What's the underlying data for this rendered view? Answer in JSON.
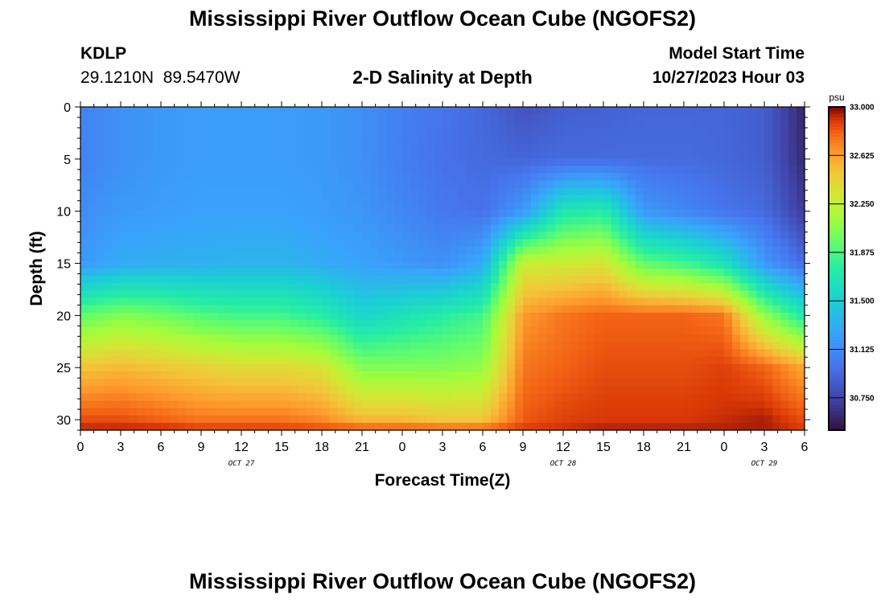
{
  "page": {
    "title": "Mississippi River Outflow Ocean Cube (NGOFS2)",
    "footer_title": "Mississippi River Outflow Ocean Cube (NGOFS2)"
  },
  "station": {
    "id": "KDLP",
    "coords": "29.1210N  89.5470W"
  },
  "model": {
    "label": "Model Start Time",
    "time": "10/27/2023 Hour 03"
  },
  "chart_data": {
    "type": "heatmap",
    "title": "2-D Salinity at Depth",
    "xlabel": "Forecast Time(Z)",
    "ylabel": "Depth (ft)",
    "x_range_hours": [
      0,
      54
    ],
    "x_ticks": [
      "0",
      "3",
      "6",
      "9",
      "12",
      "15",
      "18",
      "21",
      "0",
      "3",
      "6",
      "9",
      "12",
      "15",
      "18",
      "21",
      "0",
      "3",
      "6"
    ],
    "date_labels": [
      {
        "text": "OCT 27",
        "at_hour": 12
      },
      {
        "text": "OCT 28",
        "at_hour": 36
      },
      {
        "text": "OCT 29",
        "at_hour": 51
      }
    ],
    "y_range": [
      0,
      31
    ],
    "y_ticks": [
      "0",
      "5",
      "10",
      "15",
      "20",
      "25",
      "30"
    ],
    "colorbar": {
      "unit": "psu",
      "min": 30.5,
      "max": 33.0,
      "ticks": [
        "33.000",
        "32.625",
        "32.250",
        "31.875",
        "31.500",
        "31.125",
        "30.750"
      ],
      "tick_values": [
        33.0,
        32.625,
        32.25,
        31.875,
        31.5,
        31.125,
        30.75
      ]
    },
    "profile": {
      "hours": [
        0,
        3,
        6,
        9,
        12,
        15,
        18,
        21,
        24,
        27,
        30,
        33,
        36,
        39,
        42,
        45,
        48,
        51,
        54
      ],
      "depths_ft": [
        0,
        5,
        10,
        15,
        20,
        25,
        30,
        31
      ],
      "salinity_psu": [
        [
          31.08,
          31.08,
          31.13,
          31.2,
          31.95,
          32.5,
          32.85,
          32.95
        ],
        [
          31.15,
          31.15,
          31.2,
          31.3,
          32.05,
          32.55,
          32.85,
          32.95
        ],
        [
          31.2,
          31.2,
          31.22,
          31.32,
          32.0,
          32.5,
          32.8,
          32.95
        ],
        [
          31.22,
          31.22,
          31.25,
          31.33,
          31.9,
          32.45,
          32.75,
          32.9
        ],
        [
          31.22,
          31.22,
          31.25,
          31.35,
          31.85,
          32.4,
          32.75,
          32.9
        ],
        [
          31.22,
          31.22,
          31.25,
          31.35,
          31.85,
          32.4,
          32.75,
          32.9
        ],
        [
          31.2,
          31.2,
          31.22,
          31.3,
          31.75,
          32.35,
          32.7,
          32.88
        ],
        [
          31.15,
          31.15,
          31.18,
          31.25,
          31.55,
          32.05,
          32.55,
          32.85
        ],
        [
          31.05,
          31.05,
          31.1,
          31.2,
          31.65,
          32.05,
          32.55,
          32.85
        ],
        [
          31.0,
          30.98,
          31.02,
          31.15,
          31.75,
          32.05,
          32.5,
          32.82
        ],
        [
          30.93,
          30.95,
          30.98,
          31.3,
          31.85,
          32.1,
          32.5,
          32.82
        ],
        [
          30.82,
          30.92,
          31.2,
          32.3,
          32.65,
          32.75,
          32.82,
          32.9
        ],
        [
          30.88,
          30.95,
          31.7,
          32.3,
          32.75,
          32.8,
          32.88,
          32.92
        ],
        [
          30.9,
          30.95,
          31.75,
          32.35,
          32.8,
          32.85,
          32.9,
          32.95
        ],
        [
          30.92,
          30.95,
          31.2,
          31.95,
          32.8,
          32.85,
          32.9,
          32.95
        ],
        [
          30.92,
          30.95,
          31.1,
          31.85,
          32.8,
          32.85,
          32.9,
          32.95
        ],
        [
          30.92,
          30.93,
          31.0,
          31.65,
          32.75,
          32.88,
          32.92,
          32.95
        ],
        [
          30.88,
          30.88,
          30.95,
          31.2,
          32.1,
          32.8,
          32.95,
          32.95
        ],
        [
          30.6,
          30.62,
          30.7,
          30.95,
          31.7,
          32.6,
          32.85,
          32.9
        ]
      ]
    }
  }
}
